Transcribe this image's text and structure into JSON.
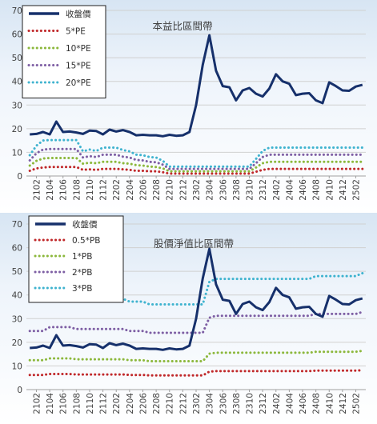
{
  "chart_data": [
    {
      "type": "line",
      "title": "本益比區間帶",
      "xlabel": "",
      "ylabel": "",
      "ylim": [
        0,
        70
      ],
      "yticks": [
        0,
        10,
        20,
        30,
        40,
        50,
        60,
        70
      ],
      "grid": true,
      "legend": "top-left",
      "x_tick_labels": [
        "2102",
        "2104",
        "2106",
        "2108",
        "2110",
        "2112",
        "2202",
        "2204",
        "2206",
        "2208",
        "2210",
        "2212",
        "2302",
        "2304",
        "2306",
        "2308",
        "2310",
        "2312",
        "2402",
        "2404",
        "2406",
        "2408",
        "2410",
        "2412",
        "2502"
      ],
      "x": [
        "2101",
        "2102",
        "2103",
        "2104",
        "2105",
        "2106",
        "2107",
        "2108",
        "2109",
        "2110",
        "2111",
        "2112",
        "2201",
        "2202",
        "2203",
        "2204",
        "2205",
        "2206",
        "2207",
        "2208",
        "2209",
        "2210",
        "2211",
        "2212",
        "2301",
        "2302",
        "2303",
        "2304",
        "2305",
        "2306",
        "2307",
        "2308",
        "2309",
        "2310",
        "2311",
        "2312",
        "2401",
        "2402",
        "2403",
        "2404",
        "2405",
        "2406",
        "2407",
        "2408",
        "2409",
        "2410",
        "2411",
        "2412",
        "2501",
        "2502",
        "2503"
      ],
      "series": [
        {
          "name": "收盤價",
          "color": "#16306b",
          "style": "solid",
          "values": [
            17.6,
            17.8,
            18.6,
            17.6,
            23,
            18.6,
            18.8,
            18.4,
            17.8,
            19.2,
            19,
            17.6,
            19.6,
            18.8,
            19.4,
            18.6,
            17.2,
            17.4,
            17.2,
            17.2,
            16.8,
            17.4,
            17,
            17.2,
            18.6,
            30,
            47,
            59.5,
            44.5,
            38,
            37.5,
            32,
            36.2,
            37.2,
            34.8,
            33.6,
            37,
            43,
            40,
            39,
            34.2,
            34.8,
            35,
            32,
            30.8,
            39.6,
            38,
            36.2,
            36,
            37.8,
            38.5
          ]
        },
        {
          "name": "5*PE",
          "color": "#c0282a",
          "style": "dotted",
          "values": [
            2.2,
            3.2,
            3.6,
            3.8,
            3.8,
            3.8,
            3.8,
            3.8,
            2.6,
            2.8,
            2.6,
            3,
            3,
            3,
            2.8,
            2.6,
            2.2,
            2.2,
            2,
            2,
            1.6,
            1,
            1,
            1,
            1,
            1,
            1,
            1,
            1,
            1,
            1,
            1,
            1,
            1,
            1.8,
            2.6,
            3,
            3,
            3,
            3,
            3,
            3,
            3,
            3,
            3,
            3,
            3,
            3,
            3,
            3,
            3
          ]
        },
        {
          "name": "10*PE",
          "color": "#8cb83c",
          "style": "dotted",
          "values": [
            4.4,
            6.4,
            7.4,
            7.6,
            7.6,
            7.6,
            7.6,
            7.6,
            5.2,
            5.6,
            5.4,
            6,
            6,
            6,
            5.4,
            5.2,
            4.6,
            4.4,
            4,
            3.8,
            3.2,
            2,
            2,
            2,
            2,
            2,
            2,
            2,
            2,
            2,
            2,
            2,
            2,
            2,
            3.6,
            5.4,
            6,
            6,
            6,
            6,
            6,
            6,
            6,
            6,
            6,
            6,
            6,
            6,
            6,
            6,
            6
          ]
        },
        {
          "name": "15*PE",
          "color": "#7e5fa4",
          "style": "dotted",
          "values": [
            6.6,
            9.6,
            11.2,
            11.4,
            11.4,
            11.4,
            11.4,
            11.4,
            7.8,
            8.4,
            8,
            9,
            9,
            9,
            8.2,
            7.8,
            6.8,
            6.6,
            6,
            5.8,
            4.8,
            3,
            3,
            3,
            3,
            3,
            3,
            3,
            3,
            3,
            3,
            3,
            3,
            3,
            5.4,
            8,
            9,
            9,
            9,
            9,
            9,
            9,
            9,
            9,
            9,
            9,
            9,
            9,
            9,
            9,
            9
          ]
        },
        {
          "name": "20*PE",
          "color": "#3fb3cf",
          "style": "dotted",
          "values": [
            8.8,
            12.8,
            15,
            15.2,
            15.2,
            15.2,
            15.2,
            15.2,
            10.4,
            11.2,
            10.6,
            12,
            12,
            12,
            11,
            10.4,
            9,
            8.8,
            8,
            7.8,
            6.4,
            4,
            4,
            4,
            4,
            4,
            4,
            4,
            4,
            4,
            4,
            4,
            4,
            4,
            7.2,
            10.6,
            12,
            12,
            12,
            12,
            12,
            12,
            12,
            12,
            12,
            12,
            12,
            12,
            12,
            12,
            12
          ]
        }
      ]
    },
    {
      "type": "line",
      "title": "股價淨值比區間帶",
      "xlabel": "",
      "ylabel": "",
      "ylim": [
        0,
        70
      ],
      "yticks": [
        0,
        10,
        20,
        30,
        40,
        50,
        60,
        70
      ],
      "grid": true,
      "legend": "top-left",
      "x_tick_labels": [
        "2102",
        "2104",
        "2106",
        "2108",
        "2110",
        "2112",
        "2202",
        "2204",
        "2206",
        "2208",
        "2210",
        "2212",
        "2302",
        "2304",
        "2306",
        "2308",
        "2310",
        "2312",
        "2402",
        "2404",
        "2406",
        "2408",
        "2410",
        "2412",
        "2502"
      ],
      "x": [
        "2101",
        "2102",
        "2103",
        "2104",
        "2105",
        "2106",
        "2107",
        "2108",
        "2109",
        "2110",
        "2111",
        "2112",
        "2201",
        "2202",
        "2203",
        "2204",
        "2205",
        "2206",
        "2207",
        "2208",
        "2209",
        "2210",
        "2211",
        "2212",
        "2301",
        "2302",
        "2303",
        "2304",
        "2305",
        "2306",
        "2307",
        "2308",
        "2309",
        "2310",
        "2311",
        "2312",
        "2401",
        "2402",
        "2403",
        "2404",
        "2405",
        "2406",
        "2407",
        "2408",
        "2409",
        "2410",
        "2411",
        "2412",
        "2501",
        "2502",
        "2503"
      ],
      "series": [
        {
          "name": "收盤價",
          "color": "#16306b",
          "style": "solid",
          "values": [
            17.6,
            17.8,
            18.6,
            17.6,
            23,
            18.6,
            18.8,
            18.4,
            17.8,
            19.2,
            19,
            17.6,
            19.6,
            18.8,
            19.4,
            18.6,
            17.2,
            17.4,
            17.2,
            17.2,
            16.8,
            17.4,
            17,
            17.2,
            18.6,
            30,
            47,
            59.5,
            44.5,
            38,
            37.5,
            32,
            36.2,
            37.2,
            34.8,
            33.6,
            37,
            43,
            40,
            39,
            34.2,
            34.8,
            35,
            32,
            30.8,
            39.6,
            38,
            36.2,
            36,
            37.8,
            38.5
          ]
        },
        {
          "name": "0.5*PB",
          "color": "#c0282a",
          "style": "dotted",
          "values": [
            6.2,
            6.2,
            6.2,
            6.6,
            6.6,
            6.6,
            6.6,
            6.4,
            6.4,
            6.4,
            6.4,
            6.4,
            6.4,
            6.4,
            6.4,
            6.2,
            6.2,
            6.2,
            6,
            6,
            6,
            6,
            6,
            6,
            6,
            6,
            6,
            7.6,
            7.8,
            7.8,
            7.8,
            7.8,
            7.8,
            7.8,
            7.8,
            7.8,
            7.8,
            7.8,
            7.8,
            7.8,
            7.8,
            7.8,
            7.8,
            8,
            8,
            8,
            8,
            8,
            8,
            8,
            8.2
          ]
        },
        {
          "name": "1*PB",
          "color": "#8cb83c",
          "style": "dotted",
          "values": [
            12.4,
            12.4,
            12.4,
            13.2,
            13.2,
            13.2,
            13.2,
            12.8,
            12.8,
            12.8,
            12.8,
            12.8,
            12.8,
            12.8,
            12.8,
            12.4,
            12.4,
            12.4,
            12,
            12,
            12,
            12,
            12,
            12,
            12,
            12,
            12,
            15.2,
            15.6,
            15.6,
            15.6,
            15.6,
            15.6,
            15.6,
            15.6,
            15.6,
            15.6,
            15.6,
            15.6,
            15.6,
            15.6,
            15.6,
            15.6,
            16,
            16,
            16,
            16,
            16,
            16,
            16,
            16.4
          ]
        },
        {
          "name": "2*PB",
          "color": "#7e5fa4",
          "style": "dotted",
          "values": [
            24.8,
            24.8,
            24.8,
            26.4,
            26.4,
            26.4,
            26.4,
            25.6,
            25.6,
            25.6,
            25.6,
            25.6,
            25.6,
            25.6,
            25.6,
            24.8,
            24.8,
            24.8,
            24,
            24,
            24,
            24,
            24,
            24,
            24,
            24,
            24,
            30.4,
            31.2,
            31.2,
            31.2,
            31.2,
            31.2,
            31.2,
            31.2,
            31.2,
            31.2,
            31.2,
            31.2,
            31.2,
            31.2,
            31.2,
            31.2,
            32,
            32,
            32,
            32,
            32,
            32,
            32,
            32.8
          ]
        },
        {
          "name": "3*PB",
          "color": "#3fb3cf",
          "style": "dotted",
          "values": [
            37.2,
            37.2,
            37.2,
            39.6,
            39.6,
            39.6,
            39.6,
            38.4,
            38.4,
            38.4,
            38.4,
            38.4,
            38.4,
            38.4,
            38.4,
            37.2,
            37.2,
            37.2,
            36,
            36,
            36,
            36,
            36,
            36,
            36,
            36,
            36,
            45.6,
            46.8,
            46.8,
            46.8,
            46.8,
            46.8,
            46.8,
            46.8,
            46.8,
            46.8,
            46.8,
            46.8,
            46.8,
            46.8,
            46.8,
            46.8,
            48,
            48,
            48,
            48,
            48,
            48,
            48,
            49.2
          ]
        }
      ]
    }
  ]
}
